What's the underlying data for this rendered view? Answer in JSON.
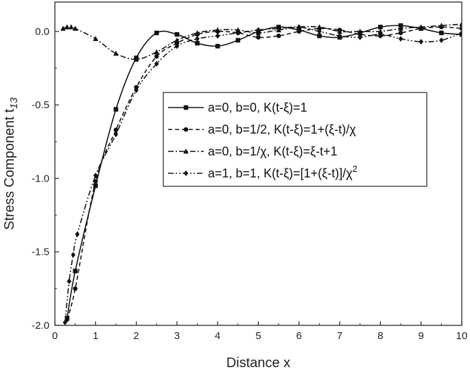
{
  "chart_data": {
    "type": "line",
    "xlabel": "Distance x",
    "ylabel": {
      "main": "Stress Component t",
      "subscript": "13"
    },
    "xlim": [
      0,
      10
    ],
    "ylim": [
      -2.0,
      0.2
    ],
    "x_ticks": [
      0,
      1,
      2,
      3,
      4,
      5,
      6,
      7,
      8,
      9,
      10
    ],
    "x_tick_labels": [
      "0",
      "1",
      "2",
      "3",
      "4",
      "5",
      "6",
      "7",
      "8",
      "9",
      "10"
    ],
    "y_ticks": [
      0.0,
      -0.5,
      -1.0,
      -1.5,
      -2.0
    ],
    "y_tick_labels": [
      "0.0",
      "-0.5",
      "-1.0",
      "-1.5",
      "-2.0"
    ],
    "grid": false,
    "legend_position": "center",
    "series": [
      {
        "name": "a=0, b=0, K(t-ξ)=1",
        "legend": {
          "text": "a=0, b=0, K(t-ξ)=1",
          "sup": ""
        },
        "dash": "solid",
        "marker": "square",
        "x": [
          0.3,
          0.5,
          1.0,
          1.5,
          2.0,
          2.5,
          3.0,
          3.5,
          4.0,
          4.5,
          5.0,
          5.5,
          6.0,
          6.5,
          7.0,
          7.5,
          8.0,
          8.5,
          9.0,
          9.5,
          10.0
        ],
        "y": [
          -1.95,
          -1.63,
          -1.05,
          -0.53,
          -0.18,
          -0.01,
          -0.02,
          -0.08,
          -0.1,
          -0.06,
          0.0,
          0.03,
          0.01,
          -0.03,
          -0.04,
          -0.01,
          0.03,
          0.04,
          0.02,
          -0.01,
          -0.02
        ]
      },
      {
        "name": "a=0, b=1/2, K(t-ξ)=1+(ξ-t)/χ",
        "legend": {
          "text": "a=0, b=1/2, K(t-ξ)=1+(ξ-t)/χ",
          "sup": ""
        },
        "dash": "dash",
        "marker": "circle",
        "x": [
          0.3,
          0.5,
          1.0,
          1.5,
          2.0,
          2.5,
          3.0,
          3.5,
          4.0,
          4.5,
          5.0,
          5.5,
          6.0,
          6.5,
          7.0,
          7.5,
          8.0,
          8.5,
          9.0,
          9.5,
          10.0
        ],
        "y": [
          -1.96,
          -1.75,
          -1.02,
          -0.67,
          -0.38,
          -0.17,
          -0.08,
          -0.02,
          0.0,
          -0.01,
          -0.04,
          -0.03,
          0.0,
          0.02,
          0.01,
          -0.02,
          -0.03,
          -0.01,
          0.02,
          0.03,
          0.02
        ]
      },
      {
        "name": "a=0, b=1/χ, K(t-ξ)=ξ-t+1",
        "legend": {
          "text": "a=0, b=1/χ, K(t-ξ)=ξ-t+1",
          "sup": ""
        },
        "dash": "dashdot",
        "marker": "triangle",
        "x": [
          0.2,
          0.3,
          0.4,
          0.5,
          1.0,
          1.5,
          2.0,
          2.5,
          3.0,
          3.5,
          4.0,
          4.5,
          5.0,
          5.5,
          6.0,
          6.5,
          7.0,
          7.5,
          8.0,
          8.5,
          9.0,
          9.5,
          10.0
        ],
        "y": [
          0.02,
          0.03,
          0.03,
          0.02,
          -0.05,
          -0.15,
          -0.19,
          -0.14,
          -0.06,
          -0.01,
          0.01,
          0.01,
          -0.01,
          0.01,
          0.03,
          0.03,
          0.0,
          0.0,
          0.0,
          0.02,
          0.03,
          0.04,
          0.05
        ]
      },
      {
        "name": "a=1, b=1, K(t-ξ)=[1+(ξ-t)]/χ2",
        "legend": {
          "text": "a=1, b=1, K(t-ξ)=[1+(ξ-t)]/χ",
          "sup": "2"
        },
        "dash": "dashdotdot",
        "marker": "diamond",
        "x": [
          0.25,
          0.35,
          0.45,
          0.55,
          1.0,
          1.5,
          2.0,
          2.5,
          3.0,
          3.5,
          4.0,
          4.5,
          5.0,
          5.5,
          6.0,
          6.5,
          7.0,
          7.5,
          8.0,
          8.5,
          9.0,
          9.5,
          10.0
        ],
        "y": [
          -1.98,
          -1.7,
          -1.52,
          -1.38,
          -0.98,
          -0.7,
          -0.4,
          -0.22,
          -0.1,
          -0.05,
          -0.03,
          -0.01,
          0.01,
          0.02,
          0.03,
          0.0,
          -0.03,
          -0.04,
          -0.02,
          -0.05,
          -0.07,
          -0.06,
          -0.01
        ]
      }
    ]
  }
}
